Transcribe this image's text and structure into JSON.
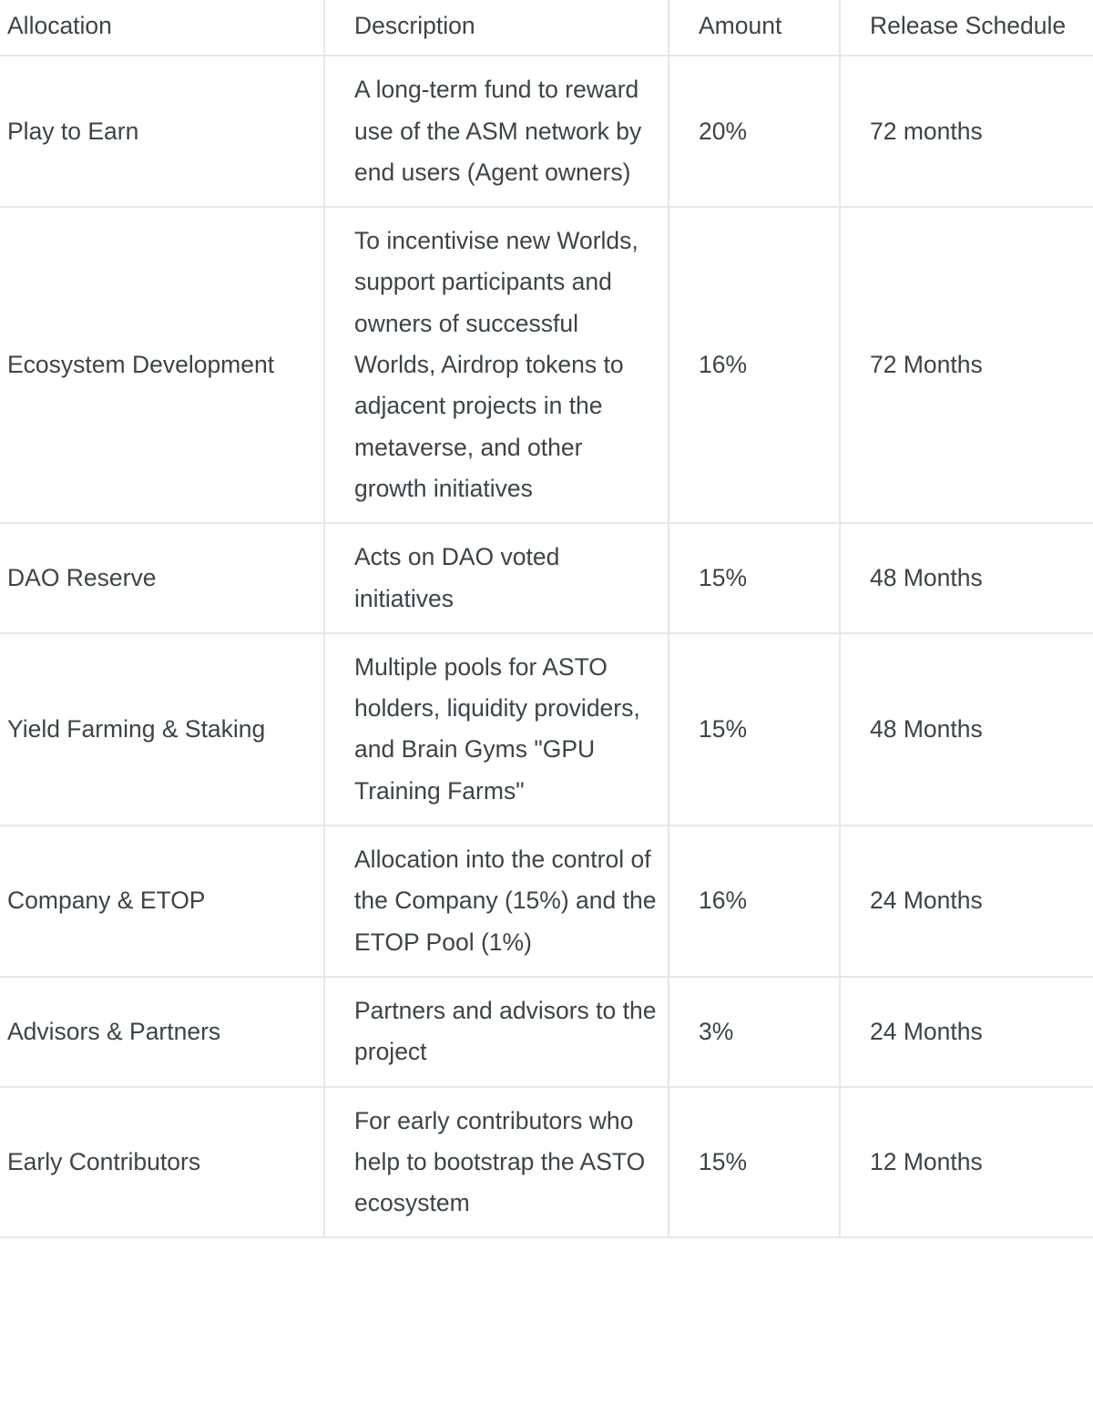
{
  "table": {
    "headers": [
      "Allocation",
      "Description",
      "Amount",
      "Release Schedule"
    ],
    "rows": [
      {
        "allocation": "Play to Earn",
        "description": "A long-term fund to reward use of the ASM network by end users (Agent owners)",
        "amount": "20%",
        "release": "72 months"
      },
      {
        "allocation": "Ecosystem Development",
        "description": "To incentivise new Worlds, support participants and owners of successful Worlds, Airdrop tokens to adjacent projects in the metaverse, and other growth initiatives",
        "amount": "16%",
        "release": "72 Months"
      },
      {
        "allocation": "DAO Reserve",
        "description": "Acts on DAO voted initiatives",
        "amount": "15%",
        "release": "48 Months"
      },
      {
        "allocation": "Yield Farming & Staking",
        "description": "Multiple pools for ASTO holders, liquidity providers, and Brain Gyms \"GPU Training Farms\"",
        "amount": "15%",
        "release": "48 Months"
      },
      {
        "allocation": "Company & ETOP",
        "description": "Allocation into the control of the Company (15%) and the ETOP Pool (1%)",
        "amount": "16%",
        "release": "24 Months"
      },
      {
        "allocation": "Advisors & Partners",
        "description": "Partners and advisors to the project",
        "amount": "3%",
        "release": "24 Months"
      },
      {
        "allocation": "Early Contributors",
        "description": "For early contributors who help to bootstrap the ASTO ecosystem",
        "amount": "15%",
        "release": "12 Months"
      }
    ]
  },
  "colors": {
    "text": "#3c4449",
    "border": "#e3e8ee"
  }
}
